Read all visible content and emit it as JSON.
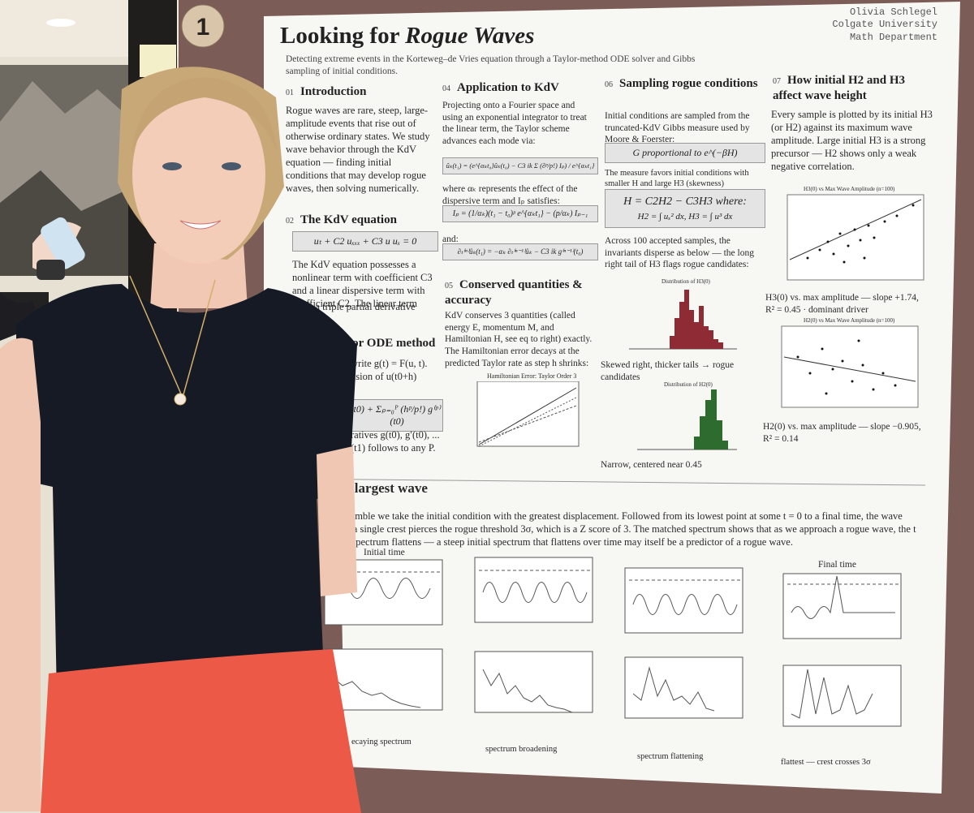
{
  "badge": "1",
  "poster": {
    "title_plain": "Looking for ",
    "title_italic": "Rogue Waves",
    "author": [
      "Olivia Schlegel",
      "Colgate University",
      "Math Department"
    ],
    "subtitle": "Detecting extreme events in the Korteweg–de Vries equation through a Taylor-method ODE solver and Gibbs sampling of initial conditions.",
    "intro": {
      "number": "01",
      "heading": "Introduction",
      "text": "Rogue waves are rare, steep, large-amplitude events that rise out of otherwise ordinary states. We study wave behavior through the KdV equation — finding initial conditions that may develop rogue waves, then solving numerically."
    },
    "kdv": {
      "number": "02",
      "heading": "The KdV equation",
      "equation": "uₜ + C2 uₓₓₓ + C3 u uₓ = 0",
      "text": "The KdV equation possesses a nonlinear term with coefficient C3 and a linear dispersive term with coefficient C2. The linear term",
      "text_cut": "...ing a triple partial derivative ...ffness."
    },
    "taylor": {
      "heading": "lor ODE method",
      "lines": [
        "write g(t) = F(u, t).",
        "nsion of u(t0+h)"
      ],
      "equation": "t0) + Σₚ₌₀ᴾ (hᵖ/p!) g⁽ᵖ⁾(t0)",
      "lines_after": [
        "ratives g(t0), g′(t0), ...",
        "(t1) follows to any P."
      ]
    },
    "application": {
      "number": "04",
      "heading": "Application to KdV",
      "text": "Projecting onto a Fourier space and using an exponential integrator to treat the linear term, the Taylor scheme advances each mode via:",
      "equation1": "ûₖ(t₁) = (e^{αₖt₀}ûₖ(t₀) − C3 ik Σ (∂ᵖ/p!) Iₚ) / e^{αₖt₁}",
      "text2": "where αₖ represents the effect of the dispersive term and Iₚ satisfies:",
      "equation2": "Iₚ = (1/αₖ)(t₁ − t₀)ᵖ e^{αₖt₁} − (p/αₖ) Iₚ₋₁",
      "text3": "and:",
      "equation3": "∂ₜ⁽ⁿ⁾ûₖ(t₁) = −αₖ ∂ₜ⁽ⁿ⁻¹⁾ûₖ − C3 ik g⁽ⁿ⁻¹⁾(t₀)"
    },
    "conserved": {
      "number": "05",
      "heading": "Conserved quantities & accuracy",
      "text": "KdV conserves 3 quantities (called energy E, momentum M, and Hamiltonian H, see eq to right) exactly. The Hamiltonian error decays at the predicted Taylor rate as step h shrinks:",
      "plot_title": "Hamiltonian Error: Taylor Order 3"
    },
    "sampling": {
      "number": "06",
      "heading": "Sampling rogue conditions",
      "text": "Initial conditions are sampled from the truncated-KdV Gibbs measure used by Moore & Foerster:",
      "equation1": "G proportional to e^(−βH)",
      "text2": "The measure favors initial conditions with smaller H and large H3 (skewness)",
      "equation2": "H = C2H2 − C3H3  where:",
      "equation3": "H2 = ∫ uₓ² dx,     H3 = ∫ u³ dx",
      "text3": "Across 100 accepted samples, the invariants disperse as below — the long right tail of H3 flags rogue candidates:",
      "plot1_title": "Distribution of H3(0)",
      "caption1": "Skewed right, thicker tails → rogue candidates",
      "plot2_title": "Distribution of H2(0)",
      "caption2": "Narrow, centered near 0.45"
    },
    "effect": {
      "number": "07",
      "heading": "How initial H2 and H3 affect wave height",
      "text": "Every sample is plotted by its initial H3 (or H2) against its maximum wave amplitude. Large initial H3 is a strong precursor — H2 shows only a weak negative correlation.",
      "plot1_title": "H3(0) vs Max Wave Amplitude (n=100)",
      "caption1": "H3(0) vs. max amplitude — slope +1.74, R² = 0.45 · dominant driver",
      "plot2_title": "H2(0) vs Max Wave Amplitude (n=100)",
      "caption2": "H2(0) vs. max amplitude — slope −0.905, R² = 0.14"
    },
    "largest": {
      "heading": "e largest wave",
      "text": "ensemble we take the initial condition with the greatest displacement. Followed from its lowest point at some t = 0 to a final time, the wave ntil a single crest pierces the rogue threshold 3σ, which is a Z score of 3. The matched spectrum shows that as we approach a rogue wave, the t the spectrum flattens — a steep initial spectrum that flattens over time may itself be a predictor of a rogue wave.",
      "initial_label": "Initial time",
      "final_label": "Final time",
      "captions": [
        "ecaying spectrum",
        "spectrum broadening",
        "spectrum flattening",
        "flattest — crest crosses 3σ"
      ]
    }
  }
}
